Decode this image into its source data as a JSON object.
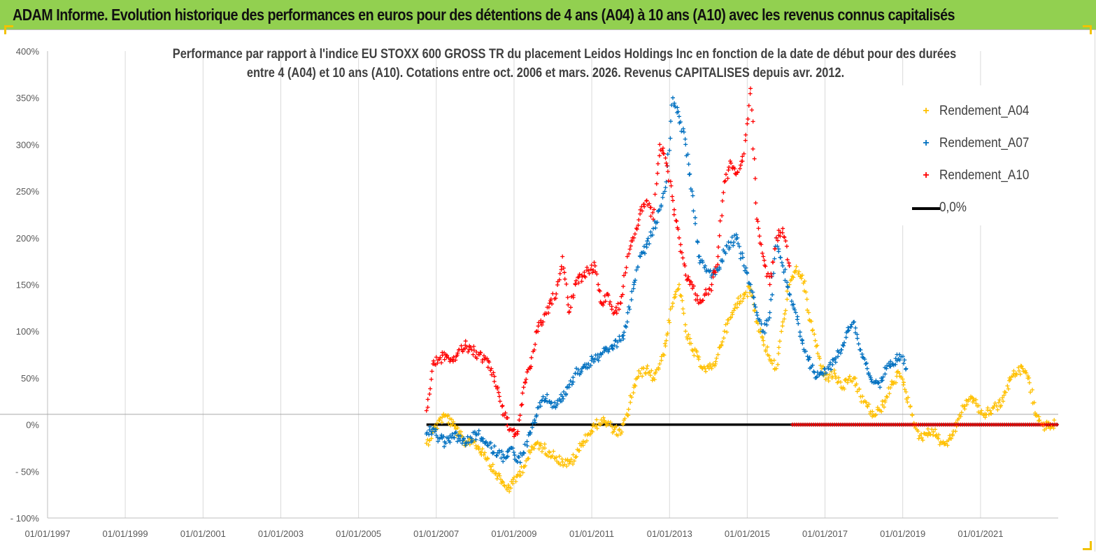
{
  "banner": {
    "title": "ADAM Informe. Evolution historique des performances en euros pour des détentions de 4 ans (A04) à 10 ans (A10) avec les revenus connus capitalisés"
  },
  "colors": {
    "banner_bg": "#92d050",
    "corner_accent": "#f2c200",
    "series_A04": "#ffc000",
    "series_A07": "#0070c0",
    "series_A10": "#ff0000",
    "zero_line": "#000000"
  },
  "chart_data": {
    "type": "scatter",
    "title_line1": "Performance par rapport à l'indice EU STOXX 600 GROSS TR  du placement Leidos Holdings Inc en fonction de la date de début pour des durées",
    "title_line2": "entre 4 (A04) et 10 ans (A10). Cotations entre oct. 2006 et mars. 2026. Revenus CAPITALISES depuis avr. 2012.",
    "xlabel": "",
    "ylabel": "",
    "x_range": [
      "1997-01-01",
      "2023-01-01"
    ],
    "ylim": [
      -100,
      400
    ],
    "y_ticks": [
      "400%",
      "350%",
      "300%",
      "250%",
      "200%",
      "150%",
      "100%",
      "50%",
      "0%",
      "- 50%",
      "- 100%"
    ],
    "y_tick_values": [
      400,
      350,
      300,
      250,
      200,
      150,
      100,
      50,
      0,
      -50,
      -100
    ],
    "x_ticks": [
      "01/01/1997",
      "01/01/1999",
      "01/01/2001",
      "01/01/2003",
      "01/01/2005",
      "01/01/2007",
      "01/01/2009",
      "01/01/2011",
      "01/01/2013",
      "01/01/2015",
      "01/01/2017",
      "01/01/2019",
      "01/01/2021"
    ],
    "x_tick_dates": [
      "1997-01-01",
      "1999-01-01",
      "2001-01-01",
      "2003-01-01",
      "2005-01-01",
      "2007-01-01",
      "2009-01-01",
      "2011-01-01",
      "2013-01-01",
      "2015-01-01",
      "2017-01-01",
      "2019-01-01",
      "2021-01-01"
    ],
    "grid": "vertical",
    "legend": {
      "position": "top-right",
      "entries": [
        "Rendement_A04",
        "Rendement_A07",
        "Rendement_A10",
        "0,0%"
      ]
    },
    "series": [
      {
        "name": "Rendement_A04",
        "marker": "+",
        "x": [
          "2006-10-01",
          "2006-12-01",
          "2007-02-01",
          "2007-04-01",
          "2007-06-01",
          "2007-08-01",
          "2007-10-01",
          "2007-12-01",
          "2008-02-01",
          "2008-04-01",
          "2008-06-01",
          "2008-08-01",
          "2008-10-01",
          "2008-12-01",
          "2009-02-01",
          "2009-04-01",
          "2009-06-01",
          "2009-08-01",
          "2009-10-01",
          "2009-12-01",
          "2010-02-01",
          "2010-04-01",
          "2010-06-01",
          "2010-08-01",
          "2010-10-01",
          "2010-12-01",
          "2011-02-01",
          "2011-04-01",
          "2011-06-01",
          "2011-08-01",
          "2011-10-01",
          "2011-12-01",
          "2012-02-01",
          "2012-04-01",
          "2012-06-01",
          "2012-08-01",
          "2012-10-01",
          "2012-12-01",
          "2013-02-01",
          "2013-04-01",
          "2013-06-01",
          "2013-08-01",
          "2013-10-01",
          "2013-12-01",
          "2014-02-01",
          "2014-04-01",
          "2014-06-01",
          "2014-08-01",
          "2014-10-01",
          "2014-12-01",
          "2015-02-01",
          "2015-04-01",
          "2015-06-01",
          "2015-08-01",
          "2015-10-01",
          "2015-12-01",
          "2016-02-01",
          "2016-04-01",
          "2016-06-01",
          "2016-08-01",
          "2016-10-01",
          "2016-12-01",
          "2017-02-01",
          "2017-04-01",
          "2017-06-01",
          "2017-08-01",
          "2017-10-01",
          "2017-12-01",
          "2018-02-01",
          "2018-04-01",
          "2018-06-01",
          "2018-08-01",
          "2018-10-01",
          "2018-12-01",
          "2019-02-01",
          "2019-04-01",
          "2019-06-01",
          "2019-08-01",
          "2019-10-01",
          "2019-12-01",
          "2020-02-01",
          "2020-04-01",
          "2020-06-01",
          "2020-08-01",
          "2020-10-01",
          "2020-12-01",
          "2021-02-01",
          "2021-04-01",
          "2021-06-01",
          "2021-08-01",
          "2021-10-01",
          "2021-12-01",
          "2022-02-01",
          "2022-04-01",
          "2022-06-01",
          "2022-08-01",
          "2022-10-01",
          "2022-12-01"
        ],
        "y": [
          -20,
          -8,
          5,
          10,
          0,
          -10,
          -20,
          -15,
          -25,
          -30,
          -45,
          -55,
          -65,
          -68,
          -55,
          -45,
          -30,
          -20,
          -25,
          -30,
          -35,
          -40,
          -42,
          -35,
          -20,
          -10,
          -2,
          5,
          0,
          -5,
          -10,
          10,
          40,
          55,
          60,
          50,
          65,
          90,
          130,
          150,
          100,
          80,
          70,
          60,
          60,
          75,
          100,
          115,
          130,
          140,
          145,
          110,
          90,
          70,
          60,
          110,
          150,
          165,
          160,
          120,
          90,
          60,
          50,
          55,
          40,
          45,
          50,
          30,
          20,
          10,
          15,
          30,
          45,
          55,
          35,
          10,
          -15,
          -10,
          -5,
          -15,
          -20,
          -15,
          5,
          20,
          30,
          20,
          10,
          15,
          20,
          25,
          50,
          55,
          60,
          50,
          10,
          0,
          -2,
          0
        ]
      },
      {
        "name": "Rendement_A07",
        "marker": "+",
        "x": [
          "2006-10-01",
          "2006-12-01",
          "2007-02-01",
          "2007-04-01",
          "2007-06-01",
          "2007-08-01",
          "2007-10-01",
          "2007-12-01",
          "2008-02-01",
          "2008-04-01",
          "2008-06-01",
          "2008-08-01",
          "2008-10-01",
          "2008-12-01",
          "2009-02-01",
          "2009-04-01",
          "2009-06-01",
          "2009-08-01",
          "2009-10-01",
          "2009-12-01",
          "2010-02-01",
          "2010-04-01",
          "2010-06-01",
          "2010-08-01",
          "2010-10-01",
          "2010-12-01",
          "2011-02-01",
          "2011-04-01",
          "2011-06-01",
          "2011-08-01",
          "2011-10-01",
          "2011-12-01",
          "2012-02-01",
          "2012-04-01",
          "2012-06-01",
          "2012-08-01",
          "2012-10-01",
          "2012-12-01",
          "2013-02-01",
          "2013-04-01",
          "2013-06-01",
          "2013-08-01",
          "2013-10-01",
          "2013-12-01",
          "2014-02-01",
          "2014-04-01",
          "2014-06-01",
          "2014-08-01",
          "2014-10-01",
          "2014-12-01",
          "2015-02-01",
          "2015-04-01",
          "2015-06-01",
          "2015-08-01",
          "2015-10-01",
          "2015-12-01",
          "2016-02-01",
          "2016-04-01",
          "2016-06-01",
          "2016-08-01",
          "2016-10-01",
          "2016-12-01",
          "2017-02-01",
          "2017-04-01",
          "2017-06-01",
          "2017-08-01",
          "2017-10-01",
          "2017-12-01",
          "2018-02-01",
          "2018-04-01",
          "2018-06-01",
          "2018-08-01",
          "2018-10-01",
          "2018-12-01",
          "2019-02-01"
        ],
        "y": [
          -10,
          -5,
          -15,
          -20,
          -10,
          -15,
          -20,
          -15,
          -10,
          -20,
          -25,
          -30,
          -35,
          -25,
          -40,
          -30,
          -10,
          10,
          30,
          25,
          20,
          30,
          40,
          55,
          60,
          65,
          70,
          75,
          80,
          85,
          90,
          110,
          150,
          180,
          190,
          210,
          230,
          260,
          350,
          330,
          300,
          250,
          180,
          170,
          160,
          165,
          185,
          195,
          200,
          170,
          150,
          120,
          100,
          120,
          200,
          170,
          140,
          120,
          90,
          70,
          50,
          55,
          60,
          70,
          80,
          100,
          110,
          80,
          60,
          45,
          40,
          60,
          65,
          75,
          60
        ]
      },
      {
        "name": "Rendement_A10",
        "marker": "+",
        "x": [
          "2006-10-01",
          "2006-12-01",
          "2007-02-01",
          "2007-04-01",
          "2007-06-01",
          "2007-08-01",
          "2007-10-01",
          "2007-12-01",
          "2008-02-01",
          "2008-04-01",
          "2008-06-01",
          "2008-08-01",
          "2008-10-01",
          "2008-12-01",
          "2009-02-01",
          "2009-04-01",
          "2009-06-01",
          "2009-08-01",
          "2009-10-01",
          "2009-12-01",
          "2010-02-01",
          "2010-04-01",
          "2010-06-01",
          "2010-08-01",
          "2010-10-01",
          "2010-12-01",
          "2011-02-01",
          "2011-04-01",
          "2011-06-01",
          "2011-08-01",
          "2011-10-01",
          "2011-12-01",
          "2012-02-01",
          "2012-04-01",
          "2012-06-01",
          "2012-08-01",
          "2012-10-01",
          "2012-12-01",
          "2013-02-01",
          "2013-04-01",
          "2013-06-01",
          "2013-08-01",
          "2013-10-01",
          "2013-12-01",
          "2014-02-01",
          "2014-04-01",
          "2014-06-01",
          "2014-08-01",
          "2014-10-01",
          "2014-12-01",
          "2015-02-01",
          "2015-04-01",
          "2015-06-01",
          "2015-08-01",
          "2015-10-01",
          "2015-12-01",
          "2016-02-01"
        ],
        "y": [
          15,
          65,
          70,
          75,
          70,
          80,
          85,
          80,
          75,
          70,
          60,
          40,
          10,
          -5,
          -10,
          40,
          60,
          100,
          110,
          130,
          140,
          180,
          120,
          150,
          160,
          165,
          170,
          130,
          140,
          120,
          130,
          180,
          200,
          230,
          240,
          220,
          300,
          280,
          240,
          200,
          160,
          150,
          130,
          140,
          150,
          180,
          260,
          280,
          270,
          290,
          360,
          220,
          180,
          150,
          200,
          210,
          170
        ]
      },
      {
        "name": "0,0%",
        "type": "line",
        "x": [
          "2006-10-01",
          "2023-01-01"
        ],
        "y": [
          0,
          0
        ]
      }
    ],
    "zero_overlay_red": {
      "x": [
        "2016-03-01",
        "2023-01-01"
      ],
      "y": [
        0,
        0
      ]
    }
  }
}
